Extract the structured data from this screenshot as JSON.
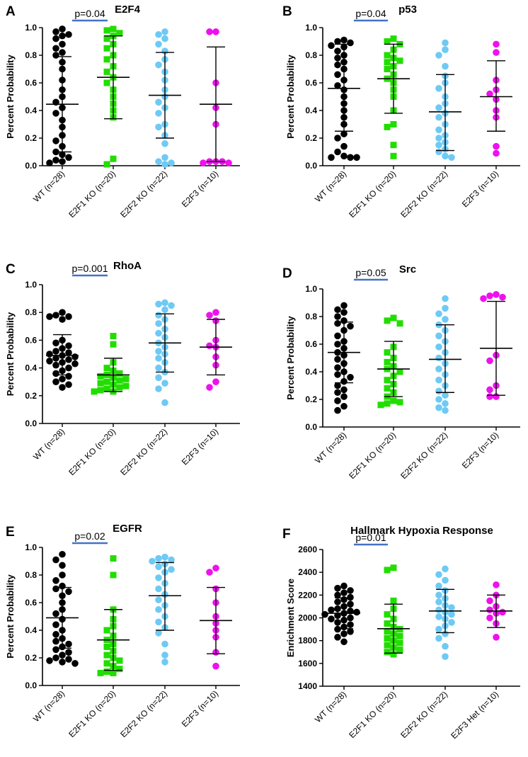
{
  "colors": {
    "WT": "#000000",
    "E2F1": "#22dd00",
    "E2F2": "#6ecaf5",
    "E2F3": "#ee11ee",
    "bracket": "#4472c4"
  },
  "chart_data": [
    {
      "type": "scatter",
      "letter": "A",
      "title": "E2F4",
      "ylabel": "Percent Probability",
      "ylim": [
        0,
        1.0
      ],
      "yticks": [
        "0.0",
        "0.2",
        "0.4",
        "0.6",
        "0.8",
        "1.0"
      ],
      "categories": [
        "WT (n=28)",
        "E2F1 KO (n=20)",
        "E2F2 KO (n=22)",
        "E2F3 (n=10)"
      ],
      "series": [
        {
          "name": "WT",
          "marker": "circle",
          "mean": 0.445,
          "sd_low": 0.1,
          "sd_high": 0.79,
          "values": [
            0.99,
            0.97,
            0.95,
            0.94,
            0.92,
            0.88,
            0.85,
            0.82,
            0.8,
            0.75,
            0.7,
            0.62,
            0.55,
            0.5,
            0.46,
            0.42,
            0.38,
            0.33,
            0.28,
            0.22,
            0.18,
            0.14,
            0.1,
            0.08,
            0.06,
            0.04,
            0.03,
            0.02
          ]
        },
        {
          "name": "E2F1 KO",
          "marker": "square",
          "mean": 0.64,
          "sd_low": 0.34,
          "sd_high": 0.94,
          "values": [
            0.99,
            0.98,
            0.96,
            0.94,
            0.92,
            0.88,
            0.85,
            0.8,
            0.77,
            0.72,
            0.68,
            0.64,
            0.6,
            0.55,
            0.5,
            0.45,
            0.4,
            0.35,
            0.05,
            0.01
          ]
        },
        {
          "name": "E2F2 KO",
          "marker": "circle",
          "mean": 0.51,
          "sd_low": 0.2,
          "sd_high": 0.82,
          "values": [
            0.97,
            0.95,
            0.92,
            0.88,
            0.83,
            0.77,
            0.73,
            0.68,
            0.62,
            0.55,
            0.5,
            0.46,
            0.42,
            0.38,
            0.3,
            0.28,
            0.22,
            0.16,
            0.06,
            0.03,
            0.02,
            0.01
          ]
        },
        {
          "name": "E2F3",
          "marker": "circle",
          "mean": 0.445,
          "sd_low": 0.03,
          "sd_high": 0.86,
          "values": [
            0.97,
            0.97,
            0.6,
            0.42,
            0.3,
            0.03,
            0.03,
            0.03,
            0.02,
            0.02
          ]
        }
      ],
      "bracket": {
        "from": 0,
        "to": 1,
        "label": "p=0.04"
      }
    },
    {
      "type": "scatter",
      "letter": "B",
      "title": "p53",
      "ylabel": "Percent Probability",
      "ylim": [
        0,
        1.0
      ],
      "yticks": [
        "0.0",
        "0.2",
        "0.4",
        "0.6",
        "0.8",
        "1.0"
      ],
      "categories": [
        "WT (n=28)",
        "E2F1 KO (n=20)",
        "E2F2 KO (n=22)",
        "E2F3 (n=10)"
      ],
      "series": [
        {
          "name": "WT",
          "marker": "circle",
          "mean": 0.56,
          "sd_low": 0.25,
          "sd_high": 0.88,
          "values": [
            0.91,
            0.9,
            0.89,
            0.87,
            0.86,
            0.83,
            0.8,
            0.78,
            0.75,
            0.73,
            0.7,
            0.66,
            0.62,
            0.58,
            0.55,
            0.5,
            0.45,
            0.4,
            0.35,
            0.3,
            0.23,
            0.2,
            0.14,
            0.1,
            0.07,
            0.06,
            0.06,
            0.06
          ]
        },
        {
          "name": "E2F1 KO",
          "marker": "square",
          "mean": 0.63,
          "sd_low": 0.38,
          "sd_high": 0.88,
          "values": [
            0.92,
            0.9,
            0.88,
            0.84,
            0.8,
            0.78,
            0.76,
            0.75,
            0.72,
            0.7,
            0.66,
            0.63,
            0.6,
            0.55,
            0.5,
            0.4,
            0.3,
            0.28,
            0.15,
            0.07
          ]
        },
        {
          "name": "E2F2 KO",
          "marker": "circle",
          "mean": 0.39,
          "sd_low": 0.11,
          "sd_high": 0.66,
          "values": [
            0.89,
            0.84,
            0.8,
            0.72,
            0.65,
            0.6,
            0.56,
            0.5,
            0.45,
            0.42,
            0.38,
            0.35,
            0.3,
            0.26,
            0.22,
            0.2,
            0.17,
            0.15,
            0.12,
            0.1,
            0.07,
            0.06
          ]
        },
        {
          "name": "E2F3",
          "marker": "circle",
          "mean": 0.5,
          "sd_low": 0.25,
          "sd_high": 0.76,
          "values": [
            0.88,
            0.82,
            0.62,
            0.55,
            0.52,
            0.48,
            0.4,
            0.35,
            0.14,
            0.09
          ]
        }
      ],
      "bracket": {
        "from": 0,
        "to": 1,
        "label": "p=0.04"
      }
    },
    {
      "type": "scatter",
      "letter": "C",
      "title": "RhoA",
      "ylabel": "Percent Probability",
      "ylim": [
        0,
        1.0
      ],
      "yticks": [
        "0.0",
        "0.2",
        "0.4",
        "0.6",
        "0.8",
        "1.0"
      ],
      "categories": [
        "WT (n=28)",
        "E2F1 KO (n=20)",
        "E2F2 KO (n=22)",
        "E2F3 (n=10)"
      ],
      "series": [
        {
          "name": "WT",
          "marker": "circle",
          "mean": 0.49,
          "sd_low": 0.35,
          "sd_high": 0.64,
          "values": [
            0.8,
            0.78,
            0.77,
            0.77,
            0.75,
            0.6,
            0.58,
            0.56,
            0.54,
            0.52,
            0.51,
            0.5,
            0.49,
            0.48,
            0.47,
            0.46,
            0.45,
            0.44,
            0.43,
            0.42,
            0.4,
            0.38,
            0.36,
            0.34,
            0.32,
            0.3,
            0.28,
            0.26
          ]
        },
        {
          "name": "E2F1 KO",
          "marker": "square",
          "mean": 0.35,
          "sd_low": 0.23,
          "sd_high": 0.47,
          "values": [
            0.63,
            0.57,
            0.44,
            0.4,
            0.38,
            0.36,
            0.35,
            0.34,
            0.33,
            0.32,
            0.31,
            0.3,
            0.29,
            0.28,
            0.27,
            0.26,
            0.25,
            0.24,
            0.23,
            0.23
          ]
        },
        {
          "name": "E2F2 KO",
          "marker": "circle",
          "mean": 0.58,
          "sd_low": 0.37,
          "sd_high": 0.79,
          "values": [
            0.87,
            0.86,
            0.85,
            0.82,
            0.78,
            0.75,
            0.72,
            0.68,
            0.65,
            0.62,
            0.58,
            0.55,
            0.52,
            0.5,
            0.47,
            0.44,
            0.4,
            0.37,
            0.33,
            0.29,
            0.25,
            0.15
          ]
        },
        {
          "name": "E2F3",
          "marker": "circle",
          "mean": 0.55,
          "sd_low": 0.35,
          "sd_high": 0.75,
          "values": [
            0.8,
            0.78,
            0.74,
            0.6,
            0.56,
            0.55,
            0.48,
            0.42,
            0.3,
            0.26
          ]
        }
      ],
      "bracket": {
        "from": 0,
        "to": 1,
        "label": "p=0.001"
      }
    },
    {
      "type": "scatter",
      "letter": "D",
      "title": "Src",
      "ylabel": "Percent Probability",
      "ylim": [
        0,
        1.0
      ],
      "yticks": [
        "0.0",
        "0.2",
        "0.4",
        "0.6",
        "0.8",
        "1.0"
      ],
      "categories": [
        "WT (n=28)",
        "E2F1 KO (n=20)",
        "E2F2 KO (n=22)",
        "E2F3 (n=10)"
      ],
      "series": [
        {
          "name": "WT",
          "marker": "circle",
          "mean": 0.54,
          "sd_low": 0.32,
          "sd_high": 0.76,
          "values": [
            0.88,
            0.85,
            0.83,
            0.8,
            0.77,
            0.75,
            0.73,
            0.7,
            0.66,
            0.62,
            0.6,
            0.57,
            0.54,
            0.52,
            0.49,
            0.46,
            0.43,
            0.4,
            0.38,
            0.36,
            0.33,
            0.3,
            0.27,
            0.25,
            0.22,
            0.19,
            0.15,
            0.12
          ]
        },
        {
          "name": "E2F1 KO",
          "marker": "square",
          "mean": 0.42,
          "sd_low": 0.22,
          "sd_high": 0.62,
          "values": [
            0.79,
            0.77,
            0.75,
            0.58,
            0.54,
            0.5,
            0.47,
            0.44,
            0.42,
            0.4,
            0.37,
            0.34,
            0.31,
            0.28,
            0.25,
            0.22,
            0.19,
            0.18,
            0.17,
            0.16
          ]
        },
        {
          "name": "E2F2 KO",
          "marker": "circle",
          "mean": 0.49,
          "sd_low": 0.25,
          "sd_high": 0.74,
          "values": [
            0.93,
            0.86,
            0.82,
            0.78,
            0.74,
            0.7,
            0.66,
            0.62,
            0.58,
            0.54,
            0.5,
            0.46,
            0.42,
            0.38,
            0.34,
            0.3,
            0.26,
            0.23,
            0.2,
            0.17,
            0.14,
            0.12
          ]
        },
        {
          "name": "E2F3",
          "marker": "circle",
          "mean": 0.57,
          "sd_low": 0.23,
          "sd_high": 0.91,
          "values": [
            0.96,
            0.95,
            0.94,
            0.93,
            0.52,
            0.48,
            0.3,
            0.27,
            0.22,
            0.22
          ]
        }
      ],
      "bracket": {
        "from": 0,
        "to": 1,
        "label": "p=0.05"
      }
    },
    {
      "type": "scatter",
      "letter": "E",
      "title": "EGFR",
      "ylabel": "Percent Probability",
      "ylim": [
        0,
        1.0
      ],
      "yticks": [
        "0.0",
        "0.2",
        "0.4",
        "0.6",
        "0.8",
        "1.0"
      ],
      "categories": [
        "WT (n=28)",
        "E2F1 KO (n=20)",
        "E2F2 KO (n=22)",
        "E2F3 (n=10)"
      ],
      "series": [
        {
          "name": "WT",
          "marker": "circle",
          "mean": 0.49,
          "sd_low": 0.27,
          "sd_high": 0.71,
          "values": [
            0.95,
            0.91,
            0.87,
            0.8,
            0.76,
            0.72,
            0.7,
            0.68,
            0.65,
            0.6,
            0.55,
            0.52,
            0.48,
            0.44,
            0.4,
            0.37,
            0.34,
            0.32,
            0.3,
            0.28,
            0.26,
            0.24,
            0.22,
            0.2,
            0.19,
            0.18,
            0.17,
            0.16
          ]
        },
        {
          "name": "E2F1 KO",
          "marker": "square",
          "mean": 0.33,
          "sd_low": 0.11,
          "sd_high": 0.55,
          "values": [
            0.92,
            0.8,
            0.55,
            0.48,
            0.43,
            0.4,
            0.36,
            0.33,
            0.3,
            0.28,
            0.25,
            0.22,
            0.2,
            0.18,
            0.16,
            0.14,
            0.12,
            0.1,
            0.09,
            0.09
          ]
        },
        {
          "name": "E2F2 KO",
          "marker": "circle",
          "mean": 0.65,
          "sd_low": 0.4,
          "sd_high": 0.89,
          "values": [
            0.93,
            0.92,
            0.91,
            0.9,
            0.88,
            0.86,
            0.84,
            0.82,
            0.78,
            0.74,
            0.7,
            0.66,
            0.62,
            0.58,
            0.55,
            0.5,
            0.46,
            0.42,
            0.38,
            0.3,
            0.22,
            0.17
          ]
        },
        {
          "name": "E2F3",
          "marker": "circle",
          "mean": 0.47,
          "sd_low": 0.23,
          "sd_high": 0.71,
          "values": [
            0.85,
            0.82,
            0.7,
            0.6,
            0.5,
            0.45,
            0.4,
            0.35,
            0.24,
            0.14
          ]
        }
      ],
      "bracket": {
        "from": 0,
        "to": 1,
        "label": "p=0.02"
      }
    },
    {
      "type": "scatter",
      "letter": "F",
      "title": "Hallmark Hypoxia Response",
      "ylabel": "Enrichment Score",
      "ylim": [
        1400,
        2600
      ],
      "yticks": [
        "1400",
        "1600",
        "1800",
        "2000",
        "2200",
        "2400",
        "2600"
      ],
      "categories": [
        "WT (n=28)",
        "E2F1 KO (n=20)",
        "E2F2 KO (n=22)",
        "E2F3 Het (n=10)"
      ],
      "series": [
        {
          "name": "WT",
          "marker": "circle",
          "mean": 2040,
          "sd_low": 1905,
          "sd_high": 2175,
          "values": [
            2280,
            2260,
            2240,
            2220,
            2200,
            2180,
            2160,
            2140,
            2120,
            2100,
            2080,
            2070,
            2060,
            2050,
            2040,
            2030,
            2020,
            2000,
            1990,
            1980,
            1960,
            1940,
            1920,
            1900,
            1880,
            1860,
            1830,
            1790
          ]
        },
        {
          "name": "E2F1 KO",
          "marker": "square",
          "mean": 1905,
          "sd_low": 1690,
          "sd_high": 2120,
          "values": [
            2440,
            2420,
            2150,
            2080,
            2030,
            1990,
            1950,
            1920,
            1900,
            1880,
            1860,
            1840,
            1820,
            1800,
            1780,
            1760,
            1740,
            1720,
            1700,
            1680
          ]
        },
        {
          "name": "E2F2 KO",
          "marker": "circle",
          "mean": 2060,
          "sd_low": 1870,
          "sd_high": 2250,
          "values": [
            2430,
            2380,
            2330,
            2280,
            2240,
            2200,
            2170,
            2140,
            2110,
            2090,
            2070,
            2050,
            2030,
            2010,
            1990,
            1960,
            1930,
            1900,
            1860,
            1820,
            1750,
            1660
          ]
        },
        {
          "name": "E2F3 Het",
          "marker": "circle",
          "mean": 2060,
          "sd_low": 1915,
          "sd_high": 2200,
          "values": [
            2290,
            2200,
            2150,
            2100,
            2070,
            2050,
            2040,
            2000,
            1950,
            1830
          ]
        }
      ],
      "bracket": {
        "from": 0,
        "to": 1,
        "label": "p=0.01"
      }
    }
  ]
}
